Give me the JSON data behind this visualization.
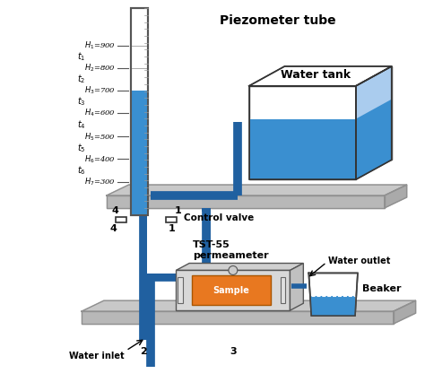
{
  "bg_color": "#e8e8e8",
  "white": "#ffffff",
  "pipe_color": "#2060a0",
  "blue_water": "#3a8fd0",
  "blue_tank": "#3a8fd0",
  "orange": "#e87820",
  "gray_plat": "#c8c8c8",
  "gray_plat_edge": "#909090",
  "gray_dark": "#505050",
  "black": "#000000",
  "title": "Piezometer tube",
  "h_texts": [
    "$H_1$=900",
    "$H_2$=800",
    "$H_3$=700",
    "$H_4$=600",
    "$H_5$=500",
    "$H_6$=400",
    "$H_7$=300"
  ],
  "t_texts": [
    "$t_1$",
    "$t_2$",
    "$t_3$",
    "$t_4$",
    "$t_5$",
    "$t_6$"
  ],
  "label_control": "Control valve",
  "label_tst": "TST-55\npermeameter",
  "label_water_tank": "Water tank",
  "label_water_inlet": "Water inlet",
  "label_water_outlet": "Water outlet",
  "label_beaker": "Beaker",
  "label_sample": "Sample"
}
